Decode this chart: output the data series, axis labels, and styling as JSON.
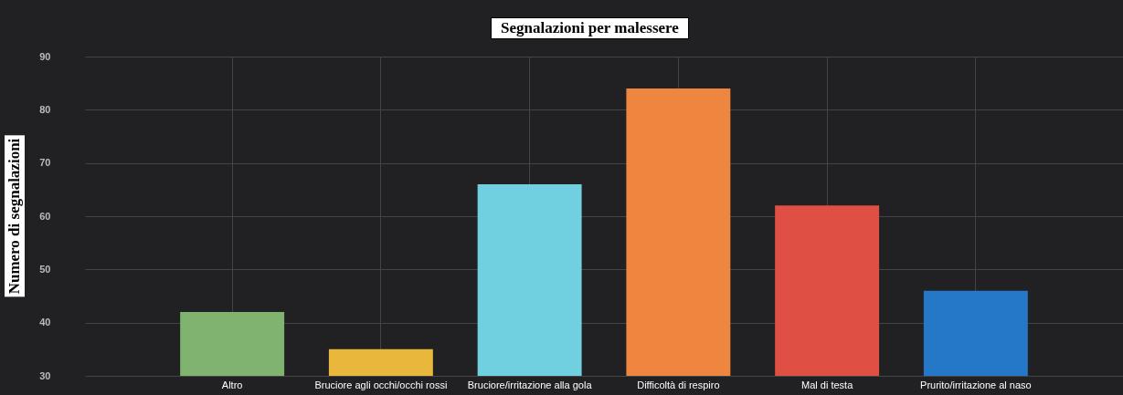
{
  "chart_data": {
    "type": "bar",
    "title": "Segnalazioni per malessere",
    "ylabel": "Numero di segnalazioni",
    "categories": [
      "Altro",
      "Bruciore agli occhi/occhi rossi",
      "Bruciore/irritazione alla gola",
      "Difficoltà di respiro",
      "Mal di testa",
      "Prurito/irritazione al naso"
    ],
    "values": [
      42,
      35,
      66,
      84,
      62,
      46
    ],
    "colors": [
      "#7fb36f",
      "#e8b73c",
      "#70d0e0",
      "#ee8640",
      "#e04f43",
      "#2577c8"
    ],
    "ylim": [
      30,
      90
    ],
    "yticks": [
      30,
      40,
      50,
      60,
      70,
      80,
      90
    ],
    "grid": true
  }
}
